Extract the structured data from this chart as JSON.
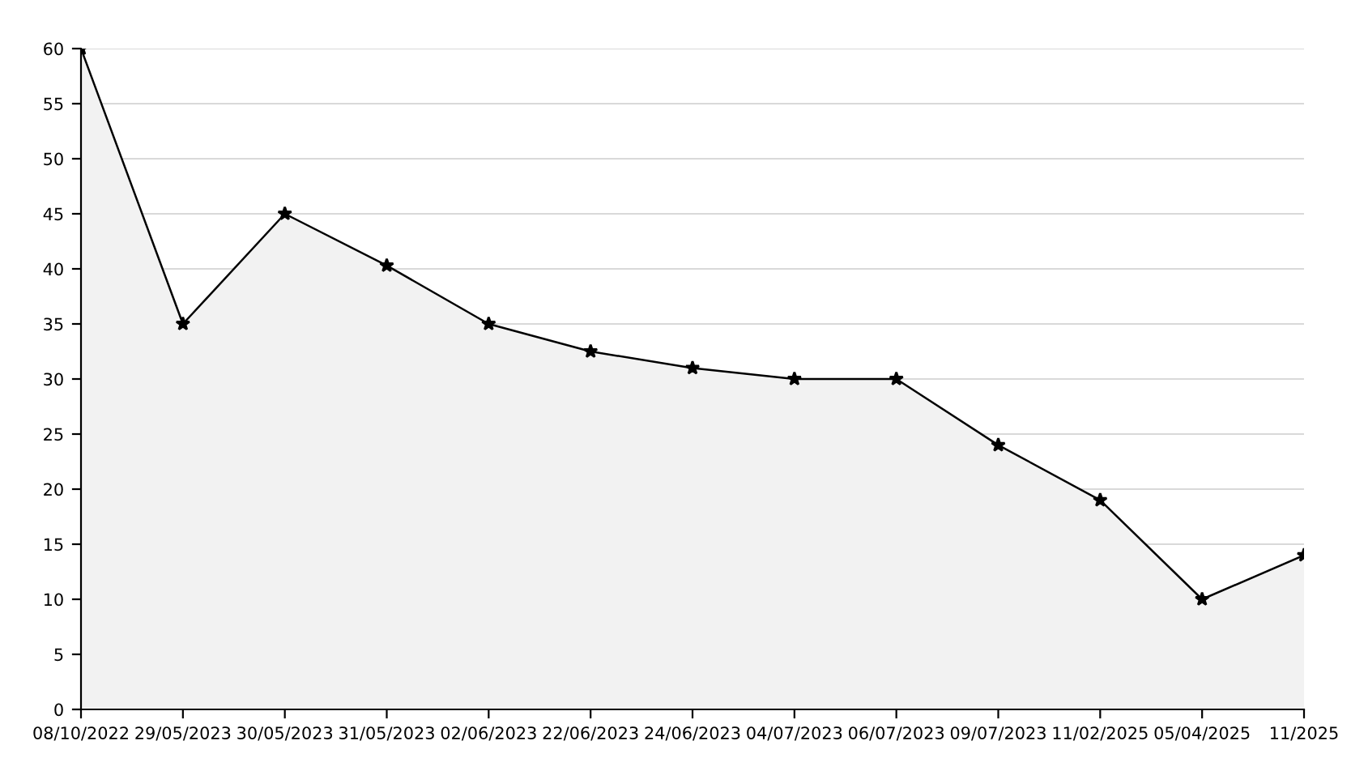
{
  "chart_data": {
    "type": "area",
    "categories": [
      "08/10/2022",
      "29/05/2023",
      "30/05/2023",
      "31/05/2023",
      "02/06/2023",
      "22/06/2023",
      "24/06/2023",
      "04/07/2023",
      "06/07/2023",
      "09/07/2023",
      "11/02/2025",
      "05/04/2025",
      "11/2025"
    ],
    "series": [
      {
        "color": "#000000",
        "values": [
          60,
          35,
          45,
          40.3,
          35,
          32.5,
          31,
          30,
          30,
          24,
          19,
          10,
          14
        ]
      }
    ],
    "ylim": [
      0,
      60
    ],
    "yticks": [
      0,
      5,
      10,
      15,
      20,
      25,
      30,
      35,
      40,
      45,
      50,
      55,
      60
    ],
    "grid": "y",
    "marker": "star",
    "line_style": "solid"
  }
}
